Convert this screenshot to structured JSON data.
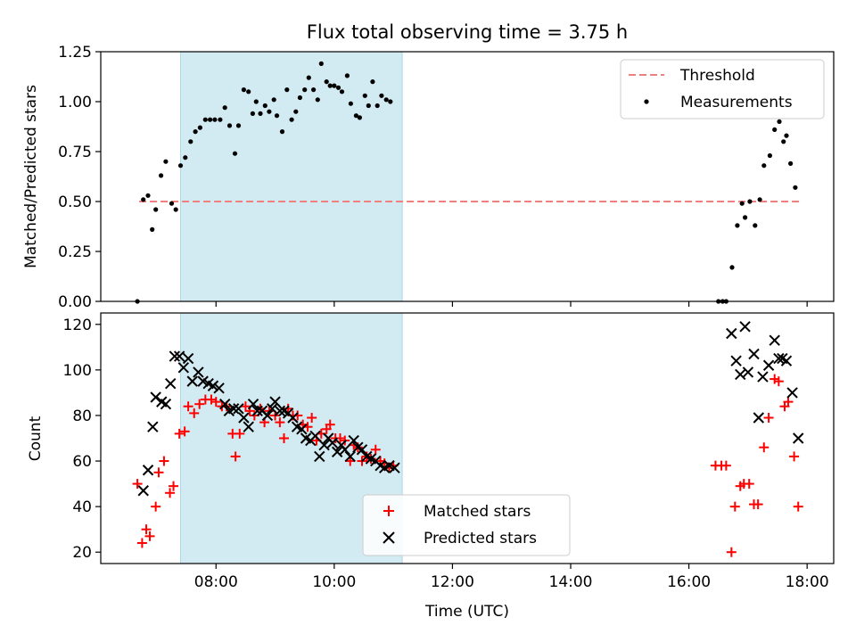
{
  "title": "Flux total observing time = 3.75 h",
  "colors": {
    "threshold": "#f08080",
    "measurement": "#000000",
    "matched": "#ff0000",
    "predicted": "#000000",
    "span": "#add8e6"
  },
  "chart_data": [
    {
      "type": "scatter",
      "ylabel": "Matched/Predicted stars",
      "ylim": [
        0,
        1.25
      ],
      "y_ticks": [
        "0.00",
        "0.25",
        "0.50",
        "0.75",
        "1.00",
        "1.25"
      ],
      "x_range_hours": [
        6.05,
        18.45
      ],
      "shaded_span_hours": [
        7.4,
        11.15
      ],
      "legend": {
        "placement": "top-right",
        "entries": [
          "Threshold",
          "Measurements"
        ]
      },
      "threshold": {
        "name": "Threshold",
        "value": 0.5,
        "x_hours": [
          6.7,
          17.9
        ]
      },
      "series": [
        {
          "name": "Measurements",
          "points": [
            [
              6.67,
              0.0
            ],
            [
              6.77,
              0.51
            ],
            [
              6.85,
              0.53
            ],
            [
              6.92,
              0.36
            ],
            [
              6.98,
              0.46
            ],
            [
              7.07,
              0.63
            ],
            [
              7.15,
              0.7
            ],
            [
              7.25,
              0.49
            ],
            [
              7.32,
              0.46
            ],
            [
              7.4,
              0.68
            ],
            [
              7.48,
              0.72
            ],
            [
              7.57,
              0.8
            ],
            [
              7.65,
              0.85
            ],
            [
              7.73,
              0.87
            ],
            [
              7.82,
              0.91
            ],
            [
              7.9,
              0.91
            ],
            [
              7.98,
              0.91
            ],
            [
              8.07,
              0.91
            ],
            [
              8.15,
              0.97
            ],
            [
              8.23,
              0.88
            ],
            [
              8.32,
              0.74
            ],
            [
              8.38,
              0.88
            ],
            [
              8.47,
              1.06
            ],
            [
              8.55,
              1.05
            ],
            [
              8.62,
              0.94
            ],
            [
              8.68,
              1.0
            ],
            [
              8.75,
              0.94
            ],
            [
              8.83,
              0.98
            ],
            [
              8.9,
              0.95
            ],
            [
              8.98,
              1.01
            ],
            [
              9.03,
              0.93
            ],
            [
              9.12,
              0.85
            ],
            [
              9.2,
              1.06
            ],
            [
              9.28,
              0.91
            ],
            [
              9.35,
              0.95
            ],
            [
              9.42,
              1.02
            ],
            [
              9.5,
              1.06
            ],
            [
              9.57,
              1.12
            ],
            [
              9.65,
              1.06
            ],
            [
              9.72,
              1.01
            ],
            [
              9.78,
              1.19
            ],
            [
              9.87,
              1.1
            ],
            [
              9.93,
              1.08
            ],
            [
              10.0,
              1.08
            ],
            [
              10.07,
              1.07
            ],
            [
              10.13,
              1.05
            ],
            [
              10.22,
              1.13
            ],
            [
              10.28,
              0.99
            ],
            [
              10.37,
              0.93
            ],
            [
              10.43,
              0.92
            ],
            [
              10.52,
              1.03
            ],
            [
              10.58,
              0.98
            ],
            [
              10.65,
              1.1
            ],
            [
              10.73,
              0.98
            ],
            [
              10.8,
              1.03
            ],
            [
              10.88,
              1.01
            ],
            [
              10.95,
              1.0
            ],
            [
              16.5,
              0.0
            ],
            [
              16.57,
              0.0
            ],
            [
              16.63,
              0.0
            ],
            [
              16.73,
              0.17
            ],
            [
              16.82,
              0.38
            ],
            [
              16.9,
              0.49
            ],
            [
              16.95,
              0.42
            ],
            [
              17.03,
              0.5
            ],
            [
              17.12,
              0.38
            ],
            [
              17.2,
              0.51
            ],
            [
              17.27,
              0.68
            ],
            [
              17.37,
              0.73
            ],
            [
              17.45,
              0.86
            ],
            [
              17.53,
              0.9
            ],
            [
              17.6,
              0.8
            ],
            [
              17.65,
              0.83
            ],
            [
              17.72,
              0.69
            ],
            [
              17.8,
              0.57
            ]
          ]
        }
      ]
    },
    {
      "type": "scatter",
      "xlabel": "Time (UTC)",
      "ylabel": "Count",
      "ylim": [
        15,
        125
      ],
      "y_ticks": [
        "20",
        "40",
        "60",
        "80",
        "100",
        "120"
      ],
      "x_ticks": [
        "08:00",
        "10:00",
        "12:00",
        "14:00",
        "16:00",
        "18:00"
      ],
      "x_tick_hours": [
        8,
        10,
        12,
        14,
        16,
        18
      ],
      "x_range_hours": [
        6.05,
        18.45
      ],
      "shaded_span_hours": [
        7.4,
        11.15
      ],
      "legend": {
        "placement": "bottom-center",
        "entries": [
          "Matched stars",
          "Predicted stars"
        ]
      },
      "series": [
        {
          "name": "Matched stars",
          "marker": "+",
          "points": [
            [
              6.67,
              50
            ],
            [
              6.75,
              24
            ],
            [
              6.82,
              30
            ],
            [
              6.88,
              27
            ],
            [
              6.98,
              40
            ],
            [
              7.03,
              55
            ],
            [
              7.12,
              60
            ],
            [
              7.22,
              46
            ],
            [
              7.28,
              49
            ],
            [
              7.38,
              72
            ],
            [
              7.47,
              73
            ],
            [
              7.53,
              84
            ],
            [
              7.63,
              81
            ],
            [
              7.72,
              85
            ],
            [
              7.82,
              87
            ],
            [
              7.92,
              87
            ],
            [
              8.0,
              86
            ],
            [
              8.1,
              84
            ],
            [
              8.18,
              84
            ],
            [
              8.28,
              72
            ],
            [
              8.33,
              62
            ],
            [
              8.4,
              72
            ],
            [
              8.5,
              84
            ],
            [
              8.57,
              82
            ],
            [
              8.65,
              80
            ],
            [
              8.75,
              83
            ],
            [
              8.82,
              77
            ],
            [
              8.9,
              82
            ],
            [
              9.0,
              80
            ],
            [
              9.08,
              77
            ],
            [
              9.15,
              70
            ],
            [
              9.22,
              83
            ],
            [
              9.3,
              80
            ],
            [
              9.38,
              80
            ],
            [
              9.47,
              76
            ],
            [
              9.55,
              75
            ],
            [
              9.62,
              79
            ],
            [
              9.7,
              69
            ],
            [
              9.78,
              72
            ],
            [
              9.87,
              74
            ],
            [
              9.93,
              76
            ],
            [
              10.02,
              70
            ],
            [
              10.1,
              70
            ],
            [
              10.18,
              69
            ],
            [
              10.27,
              60
            ],
            [
              10.33,
              67
            ],
            [
              10.4,
              66
            ],
            [
              10.47,
              60
            ],
            [
              10.55,
              62
            ],
            [
              10.62,
              61
            ],
            [
              10.7,
              65
            ],
            [
              10.78,
              60
            ],
            [
              10.85,
              59
            ],
            [
              10.93,
              57
            ],
            [
              11.0,
              58
            ],
            [
              16.45,
              58
            ],
            [
              16.55,
              58
            ],
            [
              16.63,
              58
            ],
            [
              16.72,
              20
            ],
            [
              16.78,
              40
            ],
            [
              16.87,
              49
            ],
            [
              16.93,
              50
            ],
            [
              17.02,
              50
            ],
            [
              17.1,
              41
            ],
            [
              17.17,
              41
            ],
            [
              17.27,
              66
            ],
            [
              17.35,
              79
            ],
            [
              17.45,
              96
            ],
            [
              17.52,
              95
            ],
            [
              17.62,
              84
            ],
            [
              17.68,
              86
            ],
            [
              17.78,
              62
            ],
            [
              17.85,
              40
            ]
          ]
        },
        {
          "name": "Predicted stars",
          "marker": "x",
          "points": [
            [
              6.77,
              47
            ],
            [
              6.85,
              56
            ],
            [
              6.93,
              75
            ],
            [
              6.98,
              88
            ],
            [
              7.08,
              86
            ],
            [
              7.15,
              85
            ],
            [
              7.23,
              94
            ],
            [
              7.3,
              106
            ],
            [
              7.38,
              106
            ],
            [
              7.45,
              101
            ],
            [
              7.53,
              105
            ],
            [
              7.6,
              95
            ],
            [
              7.7,
              99
            ],
            [
              7.78,
              95
            ],
            [
              7.87,
              94
            ],
            [
              7.95,
              93
            ],
            [
              8.05,
              92
            ],
            [
              8.15,
              85
            ],
            [
              8.22,
              82
            ],
            [
              8.3,
              83
            ],
            [
              8.38,
              83
            ],
            [
              8.47,
              79
            ],
            [
              8.55,
              75
            ],
            [
              8.63,
              85
            ],
            [
              8.7,
              82
            ],
            [
              8.78,
              82
            ],
            [
              8.87,
              80
            ],
            [
              8.95,
              83
            ],
            [
              9.0,
              86
            ],
            [
              9.08,
              82
            ],
            [
              9.15,
              82
            ],
            [
              9.22,
              81
            ],
            [
              9.3,
              79
            ],
            [
              9.37,
              75
            ],
            [
              9.45,
              74
            ],
            [
              9.52,
              70
            ],
            [
              9.6,
              69
            ],
            [
              9.68,
              71
            ],
            [
              9.75,
              62
            ],
            [
              9.83,
              67
            ],
            [
              9.9,
              70
            ],
            [
              9.97,
              68
            ],
            [
              10.05,
              64
            ],
            [
              10.12,
              67
            ],
            [
              10.18,
              65
            ],
            [
              10.27,
              62
            ],
            [
              10.33,
              69
            ],
            [
              10.4,
              66
            ],
            [
              10.47,
              65
            ],
            [
              10.55,
              62
            ],
            [
              10.62,
              61
            ],
            [
              10.7,
              60
            ],
            [
              10.78,
              58
            ],
            [
              10.85,
              57
            ],
            [
              10.93,
              58
            ],
            [
              11.02,
              57
            ],
            [
              16.72,
              116
            ],
            [
              16.8,
              104
            ],
            [
              16.87,
              98
            ],
            [
              16.95,
              119
            ],
            [
              17.0,
              99
            ],
            [
              17.1,
              107
            ],
            [
              17.18,
              79
            ],
            [
              17.25,
              97
            ],
            [
              17.35,
              102
            ],
            [
              17.45,
              113
            ],
            [
              17.52,
              105
            ],
            [
              17.58,
              105
            ],
            [
              17.65,
              104
            ],
            [
              17.75,
              90
            ],
            [
              17.85,
              70
            ]
          ]
        }
      ]
    }
  ]
}
